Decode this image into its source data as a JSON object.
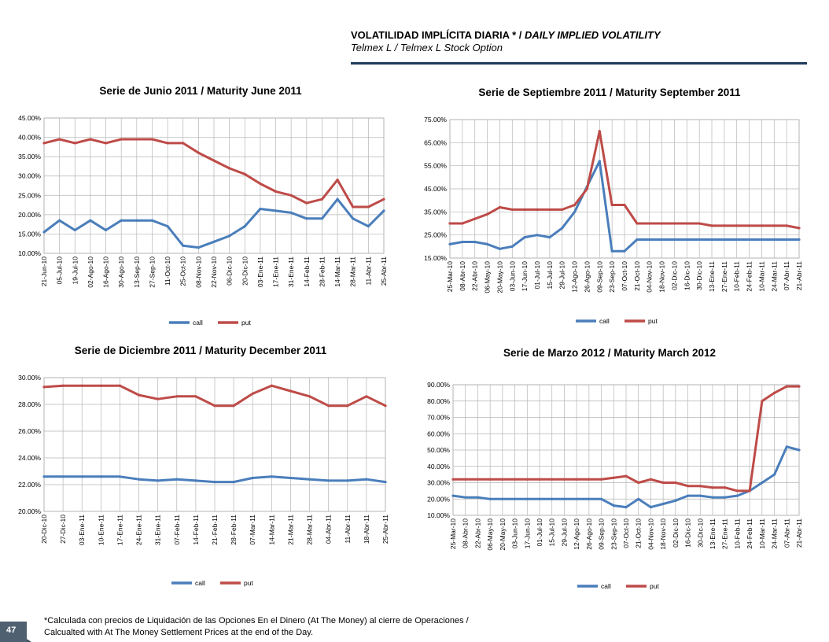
{
  "header": {
    "title_es": "VOLATILIDAD IMPLÍCITA DIARIA * / ",
    "title_en": "DAILY IMPLIED VOLATILITY",
    "subtitle": "Telmex L / Telmex L Stock Option"
  },
  "footnote": {
    "line1": "*Calculada con precios de Liquidación de las Opciones En el Dinero (At The Money) al cierre de Operaciones /",
    "line2": "Calcualted with At The Money Settlement Prices at the end of the Day."
  },
  "page_number": "47",
  "colors": {
    "call": "#4a7ebb",
    "put": "#be4b48",
    "header_rule": "#1f3a5a"
  },
  "chart_data": [
    {
      "type": "line",
      "title": "Serie de Junio 2011 / Maturity June 2011",
      "x": [
        "21-Jun-10",
        "05-Jul-10",
        "19-Jul-10",
        "02-Ago-10",
        "16-Ago-10",
        "30-Ago-10",
        "13-Sep-10",
        "27-Sep-10",
        "11-Oct-10",
        "25-Oct-10",
        "08-Nov-10",
        "22-Nov-10",
        "06-Dic-10",
        "20-Dic-10",
        "03-Ene-11",
        "17-Ene-11",
        "31-Ene-11",
        "14-Feb-11",
        "28-Feb-11",
        "14-Mar-11",
        "28-Mar-11",
        "11-Abr-11",
        "25-Abr-11"
      ],
      "yticks": [
        "45.00%",
        "40.00%",
        "35.00%",
        "30.00%",
        "25.00%",
        "20.00%",
        "15.00%",
        "10.00%"
      ],
      "ylim": [
        10,
        45
      ],
      "series": [
        {
          "name": "call",
          "values": [
            15.5,
            18.5,
            16,
            18.5,
            16,
            18.5,
            18.5,
            18.5,
            17,
            12,
            11.5,
            13,
            14.5,
            17,
            21.5,
            21,
            20.5,
            19,
            19,
            24,
            19,
            17,
            21
          ]
        },
        {
          "name": "put",
          "values": [
            38.5,
            39.5,
            38.5,
            39.5,
            38.5,
            39.5,
            39.5,
            39.5,
            38.5,
            38.5,
            36,
            34,
            32,
            30.5,
            28,
            26,
            25,
            23,
            24,
            29,
            22,
            22,
            24
          ]
        }
      ],
      "legend": [
        "call",
        "put"
      ]
    },
    {
      "type": "line",
      "title": "Serie de Septiembre 2011 / Maturity September 2011",
      "x": [
        "25-Mar-10",
        "08-Abr-10",
        "22-Abr-10",
        "06-May-10",
        "20-May-10",
        "03-Jun-10",
        "17-Jun-10",
        "01-Jul-10",
        "15-Jul-10",
        "29-Jul-10",
        "12-Ago-10",
        "26-Ago-10",
        "09-Sep-10",
        "23-Sep-10",
        "07-Oct-10",
        "21-Oct-10",
        "04-Nov-10",
        "18-Nov-10",
        "02-Dic-10",
        "16-Dic-10",
        "30-Dic-10",
        "13-Ene-11",
        "27-Ene-11",
        "10-Feb-11",
        "24-Feb-11",
        "10-Mar-11",
        "24-Mar-11",
        "07-Abr-11",
        "21-Abr-11"
      ],
      "yticks": [
        "75.00%",
        "65.00%",
        "55.00%",
        "45.00%",
        "35.00%",
        "25.00%",
        "15.00%"
      ],
      "ylim": [
        15,
        75
      ],
      "series": [
        {
          "name": "call",
          "values": [
            21,
            22,
            22,
            21,
            19,
            20,
            24,
            25,
            24,
            28,
            35,
            46,
            57,
            18,
            18,
            23,
            23,
            23,
            23,
            23,
            23,
            23,
            23,
            23,
            23,
            23,
            23,
            23,
            23
          ]
        },
        {
          "name": "put",
          "values": [
            30,
            30,
            32,
            34,
            37,
            36,
            36,
            36,
            36,
            36,
            38,
            45,
            70,
            38,
            38,
            30,
            30,
            30,
            30,
            30,
            30,
            29,
            29,
            29,
            29,
            29,
            29,
            29,
            28
          ]
        }
      ],
      "legend": [
        "call",
        "put"
      ]
    },
    {
      "type": "line",
      "title": "Serie de Diciembre 2011 / Maturity December 2011",
      "x": [
        "20-Dic-10",
        "27-Dic-10",
        "03-Ene-11",
        "10-Ene-11",
        "17-Ene-11",
        "24-Ene-11",
        "31-Ene-11",
        "07-Feb-11",
        "14-Feb-11",
        "21-Feb-11",
        "28-Feb-11",
        "07-Mar-11",
        "14-Mar-11",
        "21-Mar-11",
        "28-Mar-11",
        "04-Abr-11",
        "11-Abr-11",
        "18-Abr-11",
        "25-Abr-11"
      ],
      "yticks": [
        "30.00%",
        "28.00%",
        "26.00%",
        "24.00%",
        "22.00%",
        "20.00%"
      ],
      "ylim": [
        20,
        30
      ],
      "series": [
        {
          "name": "call",
          "values": [
            22.6,
            22.6,
            22.6,
            22.6,
            22.6,
            22.4,
            22.3,
            22.4,
            22.3,
            22.2,
            22.2,
            22.5,
            22.6,
            22.5,
            22.4,
            22.3,
            22.3,
            22.4,
            22.2
          ]
        },
        {
          "name": "put",
          "values": [
            29.3,
            29.4,
            29.4,
            29.4,
            29.4,
            28.7,
            28.4,
            28.6,
            28.6,
            27.9,
            27.9,
            28.8,
            29.4,
            29,
            28.6,
            27.9,
            27.9,
            28.6,
            27.9
          ]
        }
      ],
      "legend": [
        "call",
        "put"
      ]
    },
    {
      "type": "line",
      "title": "Serie de Marzo 2012 / Maturity March 2012",
      "x": [
        "25-Mar-10",
        "08-Abr-10",
        "22-Abr-10",
        "06-May-10",
        "20-May-10",
        "03-Jun-10",
        "17-Jun-10",
        "01-Jul-10",
        "15-Jul-10",
        "29-Jul-10",
        "12-Ago-10",
        "26-Ago-10",
        "09-Sep-10",
        "23-Sep-10",
        "07-Oct-10",
        "21-Oct-10",
        "04-Nov-10",
        "18-Nov-10",
        "02-Dic-10",
        "16-Dic-10",
        "30-Dic-10",
        "13-Ene-11",
        "27-Ene-11",
        "10-Feb-11",
        "24-Feb-11",
        "10-Mar-11",
        "24-Mar-11",
        "07-Abr-11",
        "21-Abr-11"
      ],
      "yticks": [
        "90.00%",
        "80.00%",
        "70.00%",
        "60.00%",
        "50.00%",
        "40.00%",
        "30.00%",
        "20.00%",
        "10.00%"
      ],
      "ylim": [
        10,
        90
      ],
      "series": [
        {
          "name": "call",
          "values": [
            22,
            21,
            21,
            20,
            20,
            20,
            20,
            20,
            20,
            20,
            20,
            20,
            20,
            16,
            15,
            20,
            15,
            17,
            19,
            22,
            22,
            21,
            21,
            22,
            25,
            30,
            35,
            52,
            50
          ]
        },
        {
          "name": "put",
          "values": [
            32,
            32,
            32,
            32,
            32,
            32,
            32,
            32,
            32,
            32,
            32,
            32,
            32,
            33,
            34,
            30,
            32,
            30,
            30,
            28,
            28,
            27,
            27,
            25,
            25,
            80,
            85,
            89,
            89
          ]
        }
      ],
      "legend": [
        "call",
        "put"
      ]
    }
  ]
}
